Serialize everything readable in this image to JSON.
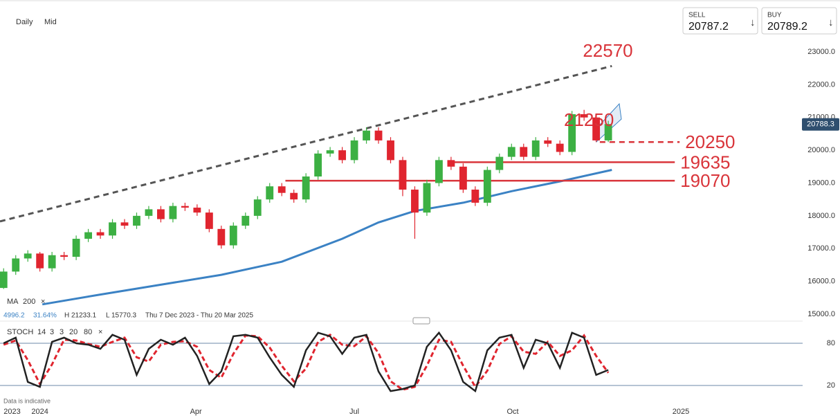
{
  "ui": {
    "interval": "Daily",
    "price_mode": "Mid",
    "sell_label": "SELL",
    "sell": "20787.2",
    "buy_label": "BUY",
    "buy": "20789.2",
    "ma_label": "MA",
    "ma_period": "200",
    "stats": [
      "4996.2",
      "31.64%",
      "H 21233.1",
      "L 15770.3",
      "Thu 7 Dec 2023 - Thu 20 Mar 2025"
    ],
    "stoch_label": "STOCH",
    "stoch_params": [
      "14",
      "3",
      "3",
      "20",
      "80"
    ],
    "disclaimer": "Data is indicative"
  },
  "chart_data": {
    "type": "candlestick",
    "x": [
      -3,
      -2,
      -1,
      0,
      1,
      2,
      3,
      4,
      5,
      6,
      7,
      8,
      9,
      10,
      11,
      12,
      13,
      14,
      15,
      16,
      17,
      18,
      19,
      20,
      21,
      22,
      23,
      24,
      25,
      26,
      27,
      28,
      29,
      30,
      31,
      32,
      33,
      34,
      35,
      36,
      37,
      38,
      39,
      40,
      41,
      42,
      43,
      44,
      45,
      46,
      47
    ],
    "open": [
      15800,
      16300,
      16700,
      16850,
      16400,
      16800,
      16750,
      17300,
      17500,
      17400,
      17800,
      17700,
      18000,
      18200,
      17900,
      18300,
      18250,
      18100,
      17600,
      17100,
      17700,
      18000,
      18500,
      18900,
      18700,
      18500,
      19200,
      19900,
      20000,
      19700,
      20300,
      20600,
      20300,
      19700,
      18800,
      18100,
      19000,
      19700,
      19500,
      18800,
      18400,
      19400,
      19800,
      20100,
      19800,
      20300,
      20200,
      19950,
      21100,
      21000,
      20300
    ],
    "high": [
      16400,
      16800,
      16950,
      16900,
      16900,
      16900,
      17400,
      17600,
      17600,
      17900,
      17900,
      18100,
      18300,
      18300,
      18400,
      18400,
      18350,
      18200,
      17700,
      17800,
      18100,
      18600,
      19000,
      19000,
      18800,
      19300,
      20000,
      20100,
      20100,
      20400,
      20700,
      20700,
      20400,
      19800,
      18900,
      19100,
      19800,
      19800,
      19600,
      18900,
      19500,
      19900,
      20200,
      20200,
      20400,
      20400,
      20300,
      21200,
      21233.1,
      21100,
      20900
    ],
    "low": [
      15770.3,
      16200,
      16600,
      16300,
      16300,
      16650,
      16650,
      17200,
      17300,
      17300,
      17600,
      17600,
      17900,
      17800,
      17800,
      18150,
      18000,
      17500,
      17000,
      17000,
      17600,
      17900,
      18400,
      18600,
      18400,
      18400,
      19100,
      19800,
      19600,
      19600,
      20200,
      20200,
      19600,
      18600,
      17300,
      18000,
      18900,
      19400,
      18700,
      18300,
      18300,
      19300,
      19700,
      19700,
      19700,
      20100,
      19850,
      19850,
      20900,
      20250,
      20250
    ],
    "close": [
      16300,
      16700,
      16850,
      16400,
      16800,
      16750,
      17300,
      17500,
      17400,
      17800,
      17700,
      18000,
      18200,
      17900,
      18300,
      18250,
      18100,
      17600,
      17100,
      17700,
      18000,
      18500,
      18900,
      18700,
      18500,
      19200,
      19900,
      20000,
      19700,
      20300,
      20600,
      20300,
      19700,
      18800,
      18100,
      19000,
      19700,
      19500,
      18800,
      18400,
      19400,
      19800,
      20100,
      19800,
      20300,
      20200,
      19950,
      21100,
      21000,
      20300,
      20800
    ],
    "up_color": "#3cb043",
    "down_color": "#e0252f",
    "ma": {
      "color": "#3b82c4",
      "x": [
        0.2,
        5,
        10,
        15,
        20,
        25,
        28,
        31,
        35,
        39,
        43,
        47.3
      ],
      "values": [
        15300,
        15600,
        15900,
        16200,
        16600,
        17300,
        17800,
        18150,
        18400,
        18750,
        19050,
        19400
      ]
    },
    "trend": {
      "color": "#555555",
      "x": [
        -3.3,
        47.3
      ],
      "values": [
        17830,
        22570
      ]
    },
    "peak": {
      "value": 21250
    },
    "levels": [
      {
        "value": 20250,
        "x": [
          46.3,
          52.9
        ],
        "dashed": true
      },
      {
        "value": 19635,
        "x": [
          34.2,
          52.5
        ],
        "dashed": false
      },
      {
        "value": 19070,
        "x": [
          20.3,
          52.5
        ],
        "dashed": false
      }
    ],
    "level_color": "#d9343a",
    "last_price": {
      "value": 20788.3,
      "label": "20788.3"
    },
    "xlim": [
      -3.3,
      62.5
    ],
    "xticks": [
      {
        "value": -2.3,
        "label": "2023"
      },
      {
        "value": 0,
        "label": "2024"
      },
      {
        "value": 12.9,
        "label": "Apr"
      },
      {
        "value": 26,
        "label": "Jul"
      },
      {
        "value": 39.1,
        "label": "Oct"
      },
      {
        "value": 53,
        "label": "2025"
      }
    ],
    "ylim": [
      15000,
      23000
    ],
    "yticks": [
      {
        "value": 15000,
        "label": "15000.0"
      },
      {
        "value": 16000,
        "label": "16000.0"
      },
      {
        "value": 17000,
        "label": "17000.0"
      },
      {
        "value": 18000,
        "label": "18000.0"
      },
      {
        "value": 19000,
        "label": "19000.0"
      },
      {
        "value": 20000,
        "label": "20000.0"
      },
      {
        "value": 21000,
        "label": "21000.0"
      },
      {
        "value": 22000,
        "label": "22000.0"
      },
      {
        "value": 23000,
        "label": "23000.0"
      }
    ],
    "stoch": {
      "ylim": [
        0,
        100
      ],
      "yticks": [
        20,
        80
      ],
      "k_color": "#222222",
      "d_color": "#e0252f",
      "k": [
        80,
        88,
        25,
        18,
        82,
        88,
        80,
        78,
        72,
        92,
        85,
        35,
        72,
        85,
        78,
        88,
        62,
        22,
        40,
        90,
        92,
        88,
        60,
        35,
        18,
        70,
        95,
        90,
        65,
        88,
        92,
        40,
        12,
        15,
        20,
        75,
        95,
        70,
        25,
        12,
        70,
        88,
        92,
        45,
        85,
        80,
        45,
        95,
        88,
        35,
        42
      ],
      "d": [
        78,
        84,
        56,
        22,
        50,
        85,
        84,
        79,
        75,
        82,
        88,
        60,
        54,
        78,
        82,
        83,
        75,
        42,
        31,
        65,
        91,
        90,
        74,
        48,
        26,
        44,
        82,
        92,
        78,
        76,
        90,
        66,
        26,
        14,
        18,
        48,
        85,
        82,
        48,
        18,
        41,
        79,
        90,
        68,
        65,
        82,
        62,
        70,
        91,
        62,
        38
      ]
    }
  }
}
